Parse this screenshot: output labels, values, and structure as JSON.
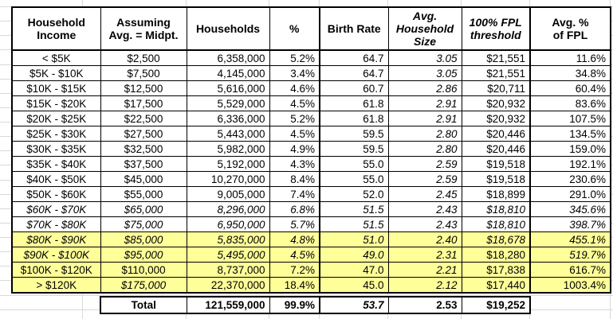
{
  "colors": {
    "highlight": "#ffff99",
    "border": "#000000"
  },
  "table": {
    "headers": [
      {
        "label": "Household\nIncome",
        "italic": false
      },
      {
        "label": "Assuming\nAvg. = Midpt.",
        "italic": false
      },
      {
        "label": "Households",
        "italic": false
      },
      {
        "label": "%",
        "italic": false
      },
      {
        "label": "Birth Rate",
        "italic": false
      },
      {
        "label": "Avg.\nHousehold\nSize",
        "italic": true
      },
      {
        "label": "100% FPL\nthreshold",
        "italic": true
      },
      {
        "label": "Avg. %\nof FPL",
        "italic": false
      }
    ],
    "rows": [
      {
        "cells": [
          "< $5K",
          "$2,500",
          "6,358,000",
          "5.2%",
          "64.7",
          "3.05",
          "$21,551",
          "11.6%"
        ],
        "highlight": false,
        "italic_cols": [
          5
        ]
      },
      {
        "cells": [
          "$5K - $10K",
          "$7,500",
          "4,145,000",
          "3.4%",
          "64.7",
          "3.05",
          "$21,551",
          "34.8%"
        ],
        "highlight": false,
        "italic_cols": [
          5
        ]
      },
      {
        "cells": [
          "$10K - $15K",
          "$12,500",
          "5,616,000",
          "4.6%",
          "60.7",
          "2.86",
          "$20,711",
          "60.4%"
        ],
        "highlight": false,
        "italic_cols": [
          5
        ]
      },
      {
        "cells": [
          "$15K - $20K",
          "$17,500",
          "5,529,000",
          "4.5%",
          "61.8",
          "2.91",
          "$20,932",
          "83.6%"
        ],
        "highlight": false,
        "italic_cols": [
          5
        ]
      },
      {
        "cells": [
          "$20K - $25K",
          "$22,500",
          "6,336,000",
          "5.2%",
          "61.8",
          "2.91",
          "$20,932",
          "107.5%"
        ],
        "highlight": false,
        "italic_cols": [
          5
        ]
      },
      {
        "cells": [
          "$25K - $30K",
          "$27,500",
          "5,443,000",
          "4.5%",
          "59.5",
          "2.80",
          "$20,446",
          "134.5%"
        ],
        "highlight": false,
        "italic_cols": [
          5
        ]
      },
      {
        "cells": [
          "$30K - $35K",
          "$32,500",
          "5,982,000",
          "4.9%",
          "59.5",
          "2.80",
          "$20,446",
          "159.0%"
        ],
        "highlight": false,
        "italic_cols": [
          5
        ]
      },
      {
        "cells": [
          "$35K - $40K",
          "$37,500",
          "5,192,000",
          "4.3%",
          "55.0",
          "2.59",
          "$19,518",
          "192.1%"
        ],
        "highlight": false,
        "italic_cols": [
          5
        ]
      },
      {
        "cells": [
          "$40K - $50K",
          "$45,000",
          "10,270,000",
          "8.4%",
          "55.0",
          "2.59",
          "$19,518",
          "230.6%"
        ],
        "highlight": false,
        "italic_cols": [
          5
        ]
      },
      {
        "cells": [
          "$50K - $60K",
          "$55,000",
          "9,005,000",
          "7.4%",
          "52.0",
          "2.45",
          "$18,899",
          "291.0%"
        ],
        "highlight": false,
        "italic_cols": [
          5
        ]
      },
      {
        "cells": [
          "$60K - $70K",
          "$65,000",
          "8,296,000",
          "6.8%",
          "51.5",
          "2.43",
          "$18,810",
          "345.6%"
        ],
        "highlight": false,
        "italic_cols": [
          0,
          1,
          2,
          3,
          4,
          5,
          6,
          7
        ]
      },
      {
        "cells": [
          "$70K - $80K",
          "$75,000",
          "6,950,000",
          "5.7%",
          "51.5",
          "2.43",
          "$18,810",
          "398.7%"
        ],
        "highlight": false,
        "italic_cols": [
          0,
          1,
          2,
          3,
          4,
          5,
          6,
          7
        ]
      },
      {
        "cells": [
          "$80K - $90K",
          "$85,000",
          "5,835,000",
          "4.8%",
          "51.0",
          "2.40",
          "$18,678",
          "455.1%"
        ],
        "highlight": true,
        "italic_cols": [
          0,
          1,
          2,
          3,
          4,
          5,
          6,
          7
        ]
      },
      {
        "cells": [
          "$90K - $100K",
          "$95,000",
          "5,495,000",
          "4.5%",
          "49.0",
          "2.31",
          "$18,280",
          "519.7%"
        ],
        "highlight": true,
        "italic_cols": [
          0,
          1,
          2,
          3,
          4,
          5,
          7
        ]
      },
      {
        "cells": [
          "$100K - $120K",
          "$110,000",
          "8,737,000",
          "7.2%",
          "47.0",
          "2.21",
          "$17,838",
          "616.7%"
        ],
        "highlight": true,
        "italic_cols": [
          5
        ]
      },
      {
        "cells": [
          "> $120K",
          "$175,000",
          "22,370,000",
          "18.4%",
          "45.0",
          "2.12",
          "$17,440",
          "1003.4%"
        ],
        "highlight": true,
        "italic_cols": [
          1,
          5
        ]
      }
    ]
  },
  "totals": {
    "cells": [
      "Total",
      "121,559,000",
      "99.9%",
      "53.7",
      "2.53",
      "$19,252"
    ],
    "italic_cols": [
      3
    ]
  }
}
